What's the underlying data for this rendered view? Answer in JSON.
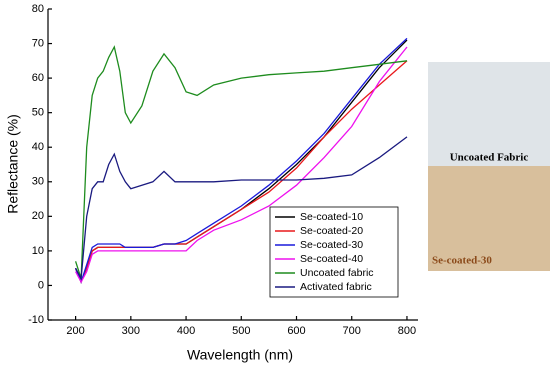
{
  "chart_data": {
    "type": "line",
    "x_label": "Wavelength (nm)",
    "y_label": "Reflectance (%)",
    "x": [
      200,
      210,
      220,
      230,
      240,
      250,
      260,
      270,
      280,
      290,
      300,
      320,
      340,
      360,
      380,
      400,
      420,
      450,
      500,
      550,
      600,
      650,
      700,
      750,
      800
    ],
    "series": [
      {
        "name": "Se-coated-10",
        "color": "#000000",
        "values": [
          5,
          1,
          5,
          10,
          11,
          11,
          11,
          11,
          11,
          11,
          11,
          11,
          11,
          12,
          12,
          12,
          14,
          17,
          22,
          28,
          35,
          43,
          53,
          63,
          71
        ]
      },
      {
        "name": "Se-coated-20",
        "color": "#e8191c",
        "values": [
          5,
          1,
          5,
          10,
          11,
          11,
          11,
          11,
          11,
          11,
          11,
          11,
          11,
          12,
          12,
          12,
          14,
          17,
          22,
          27,
          34,
          43,
          51,
          58,
          65
        ]
      },
      {
        "name": "Se-coated-30",
        "color": "#1a1adb",
        "values": [
          5,
          1,
          6,
          11,
          12,
          12,
          12,
          12,
          12,
          11,
          11,
          11,
          11,
          12,
          12,
          13,
          15,
          18,
          23,
          29,
          36,
          44,
          54,
          64,
          71.5
        ]
      },
      {
        "name": "Se-coated-40",
        "color": "#ee11ee",
        "values": [
          4,
          1,
          4,
          9,
          10,
          10,
          10,
          10,
          10,
          10,
          10,
          10,
          10,
          10,
          10,
          10,
          13,
          16,
          19,
          23,
          29,
          37,
          46,
          59,
          69
        ]
      },
      {
        "name": "Uncoated fabric",
        "color": "#1e8c1e",
        "values": [
          7,
          2,
          40,
          55,
          60,
          62,
          66,
          69,
          62,
          50,
          47,
          52,
          62,
          67,
          63,
          56,
          55,
          58,
          60,
          61,
          61.5,
          62,
          63,
          64,
          65
        ]
      },
      {
        "name": "Activated fabric",
        "color": "#1a1a80",
        "values": [
          5,
          2,
          20,
          28,
          30,
          30,
          35,
          38,
          33,
          30,
          28,
          29,
          30,
          33,
          30,
          30,
          30,
          30,
          30.5,
          30.5,
          30.5,
          31,
          32,
          37,
          43
        ]
      }
    ],
    "xlim": [
      150,
      820
    ],
    "ylim": [
      -10,
      80
    ],
    "xticks": [
      200,
      300,
      400,
      500,
      600,
      700,
      800
    ],
    "yticks": [
      -10,
      0,
      10,
      20,
      30,
      40,
      50,
      60,
      70,
      80
    ]
  },
  "photos": {
    "top_label": "Uncoated Fabric",
    "bottom_label": "Se-coated-30"
  }
}
